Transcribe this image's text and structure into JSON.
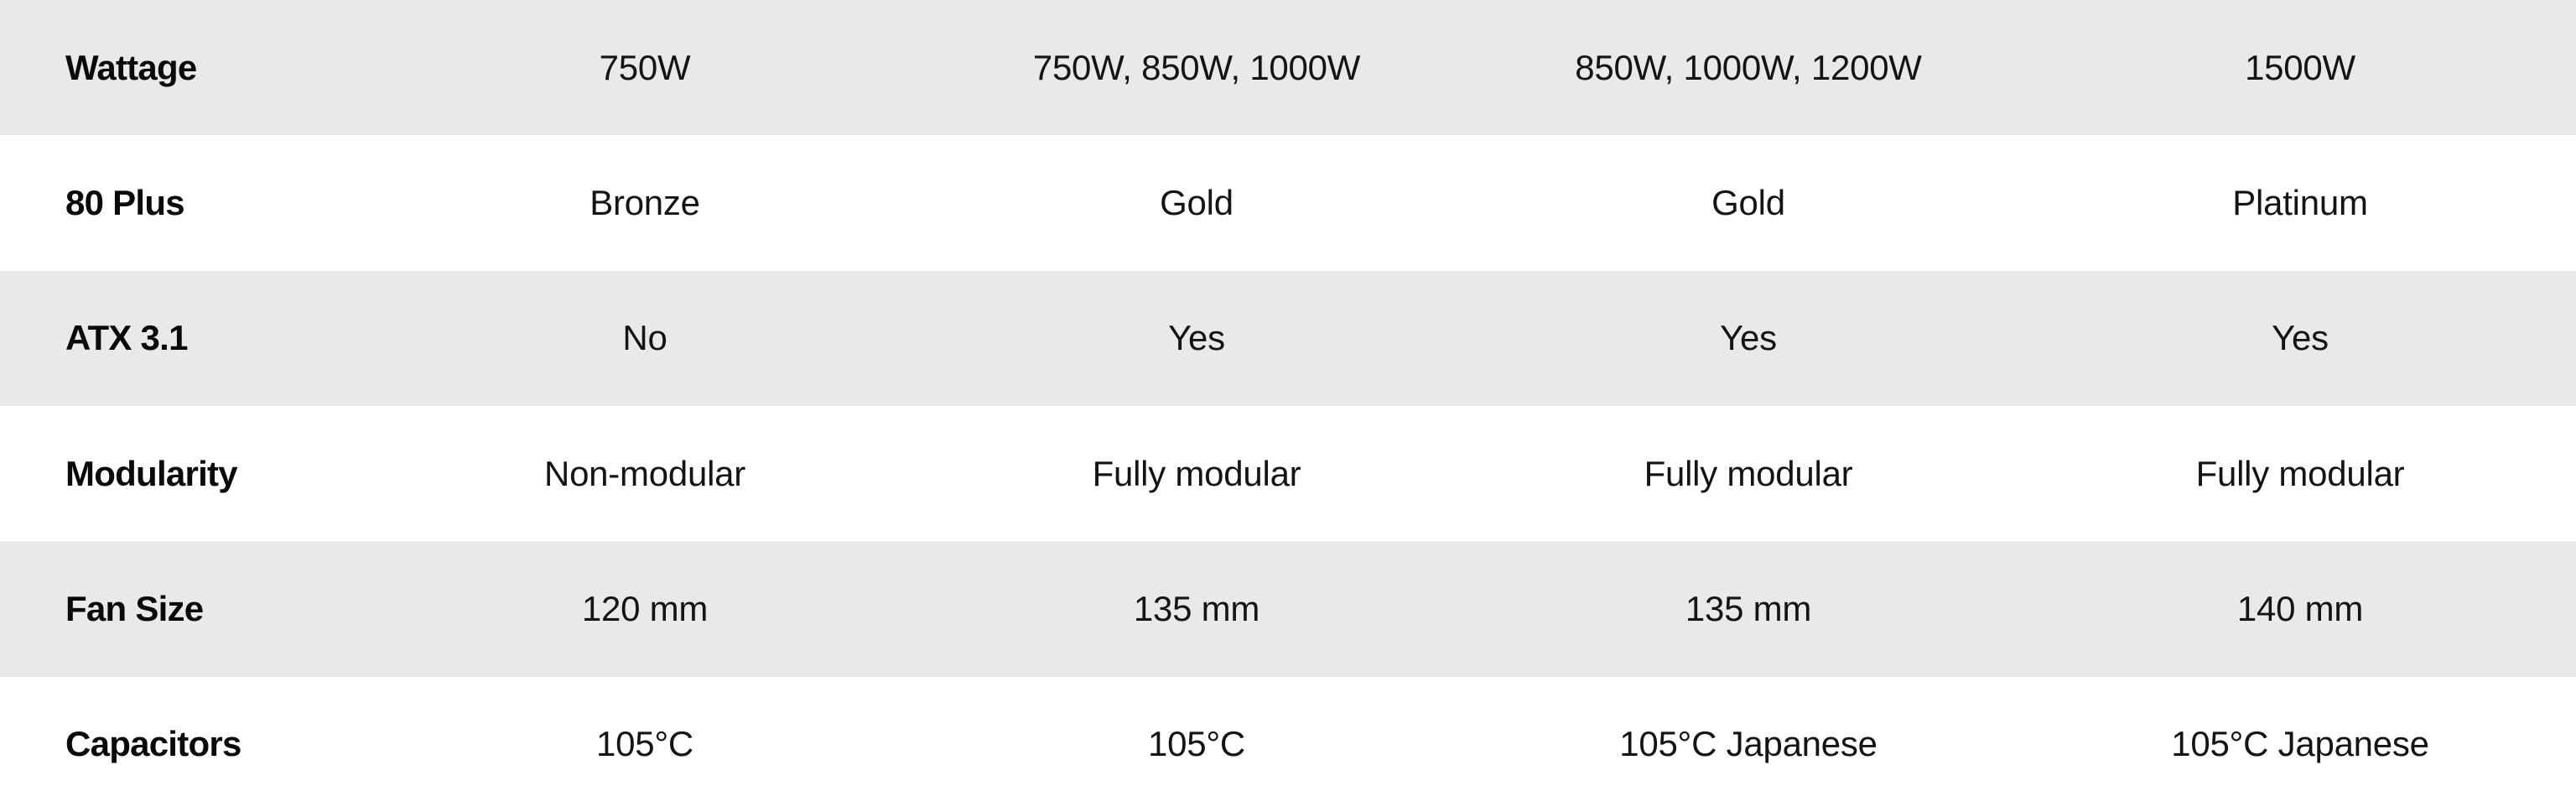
{
  "chart_data": {
    "type": "table",
    "title": "",
    "row_headers": [
      "Wattage",
      "80 Plus",
      "ATX 3.1",
      "Modularity",
      "Fan Size",
      "Capacitors"
    ],
    "rows": [
      {
        "label": "Wattage",
        "values": [
          "750W",
          "750W, 850W, 1000W",
          "850W, 1000W, 1200W",
          "1500W"
        ]
      },
      {
        "label": "80 Plus",
        "values": [
          "Bronze",
          "Gold",
          "Gold",
          "Platinum"
        ]
      },
      {
        "label": "ATX 3.1",
        "values": [
          "No",
          "Yes",
          "Yes",
          "Yes"
        ]
      },
      {
        "label": "Modularity",
        "values": [
          "Non-modular",
          "Fully modular",
          "Fully modular",
          "Fully modular"
        ]
      },
      {
        "label": "Fan Size",
        "values": [
          "120 mm",
          "135 mm",
          "135 mm",
          "140 mm"
        ]
      },
      {
        "label": "Capacitors",
        "values": [
          "105°C",
          "105°C",
          "105°C Japanese",
          "105°C Japanese"
        ]
      }
    ],
    "layout": {
      "columns": 5,
      "striped_rows": "odd",
      "grid": "off",
      "header_column": "left"
    }
  },
  "colors": {
    "stripe_bg": "#e9e9e9",
    "row_bg": "#ffffff",
    "label_text": "#0a0a0a",
    "value_text": "#141414"
  }
}
